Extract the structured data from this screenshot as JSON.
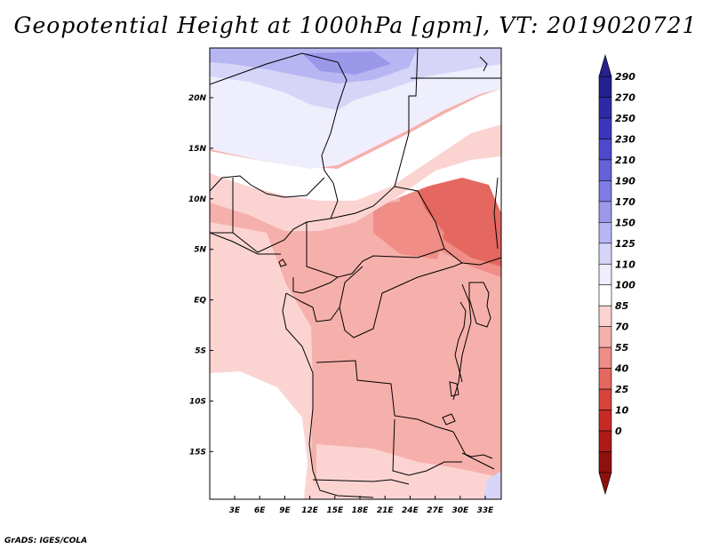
{
  "title": "Geopotential Height at 1000hPa [gpm], VT: 2019020721",
  "credit": "GrADS: IGES/COLA",
  "map": {
    "lat_labels": [
      "20N",
      "15N",
      "10N",
      "5N",
      "EQ",
      "5S",
      "10S",
      "15S"
    ],
    "lon_labels": [
      "3E",
      "6E",
      "9E",
      "12E",
      "15E",
      "18E",
      "21E",
      "24E",
      "27E",
      "30E",
      "33E"
    ]
  },
  "colorbar": {
    "labels": [
      "290",
      "270",
      "250",
      "230",
      "210",
      "190",
      "170",
      "150",
      "125",
      "110",
      "100",
      "85",
      "70",
      "55",
      "40",
      "25",
      "10",
      "0"
    ],
    "colors": [
      "#25208f",
      "#2e2aa6",
      "#3b36bb",
      "#4d48cc",
      "#6561d8",
      "#7f7be2",
      "#9b98ea",
      "#b8b6f2",
      "#d6d5f8",
      "#eeeefc",
      "#ffffff",
      "#fbd4d2",
      "#f6b0ab",
      "#ef8d86",
      "#e46760",
      "#d8433c",
      "#c62a25",
      "#ad1b17",
      "#8e110f"
    ],
    "top_arrow_color": "#25208f",
    "bottom_arrow_color": "#8e110f"
  }
}
